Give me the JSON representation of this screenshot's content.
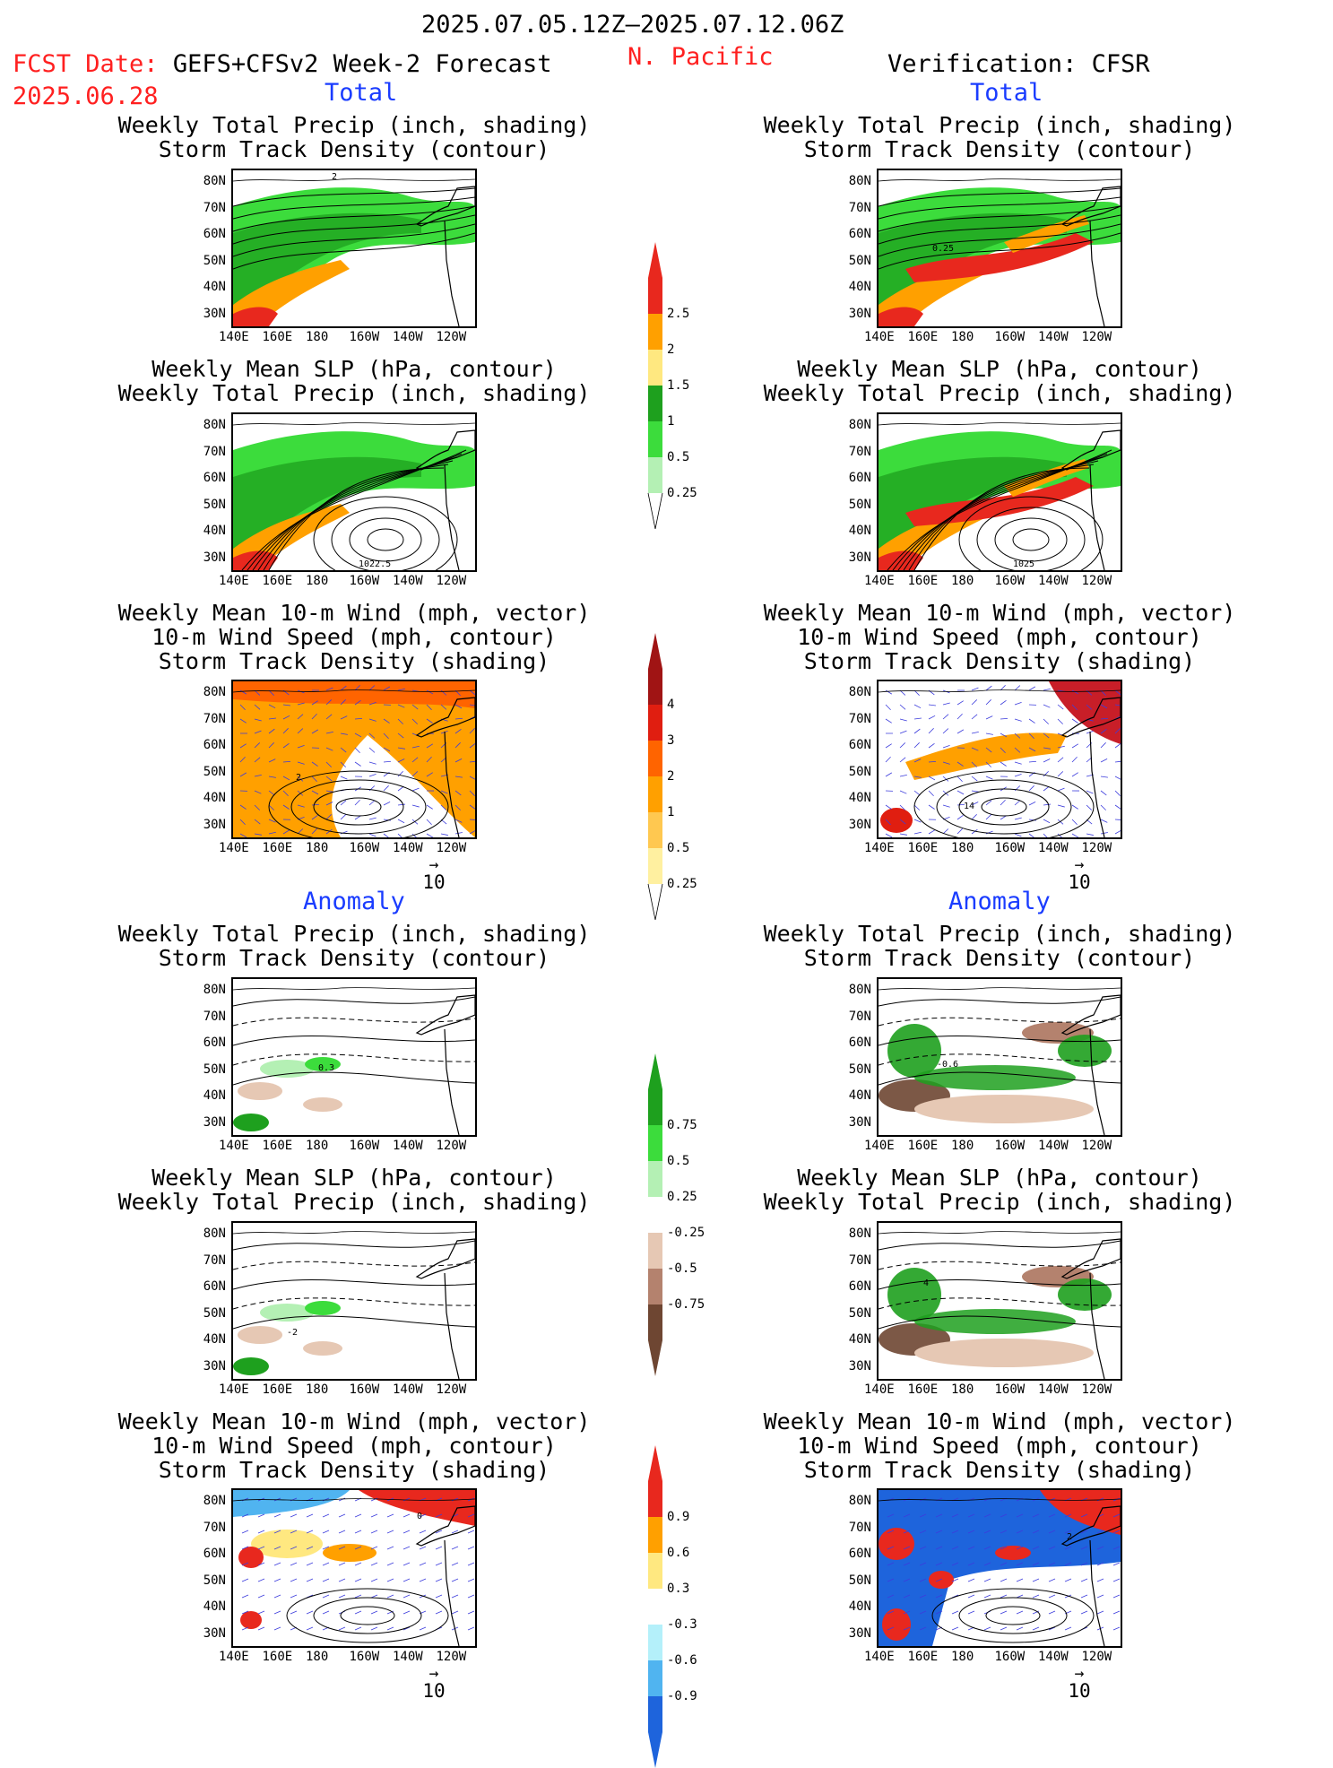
{
  "header": {
    "date_range": "2025.07.05.12Z–2025.07.12.06Z",
    "region": "N. Pacific",
    "fcst_label": "FCST Date: ",
    "fcst_model": "GEFS+CFSv2 Week-2 Forecast",
    "fcst_date": "2025.06.28",
    "verification": "Verification: CFSR"
  },
  "sections": {
    "total": "Total",
    "anomaly": "Anomaly"
  },
  "panels": [
    {
      "id": "f-tot-precip",
      "t1": "Weekly Total Precip (inch, shading)",
      "t2": "Storm Track Density (contour)",
      "t3": "",
      "label": "2"
    },
    {
      "id": "v-tot-precip",
      "t1": "Weekly Total Precip (inch, shading)",
      "t2": "Storm Track Density (contour)",
      "t3": "",
      "label": "0.25"
    },
    {
      "id": "f-tot-slp",
      "t1": "Weekly Mean SLP (hPa, contour)",
      "t2": "Weekly Total Precip (inch, shading)",
      "t3": "",
      "label": "1022.5"
    },
    {
      "id": "v-tot-slp",
      "t1": "Weekly Mean SLP (hPa, contour)",
      "t2": "Weekly Total Precip (inch, shading)",
      "t3": "",
      "label": "1025"
    },
    {
      "id": "f-tot-wind",
      "t1": "Weekly Mean 10-m Wind (mph, vector)",
      "t2": "10-m Wind Speed (mph, contour)",
      "t3": "Storm Track Density (shading)",
      "label": "2"
    },
    {
      "id": "v-tot-wind",
      "t1": "Weekly Mean 10-m Wind (mph, vector)",
      "t2": "10-m Wind Speed (mph, contour)",
      "t3": "Storm Track Density (shading)",
      "label": "14"
    },
    {
      "id": "f-anom-precip",
      "t1": "Weekly Total Precip (inch, shading)",
      "t2": "Storm Track Density (contour)",
      "t3": "",
      "label": "0.3"
    },
    {
      "id": "v-anom-precip",
      "t1": "Weekly Total Precip (inch, shading)",
      "t2": "Storm Track Density (contour)",
      "t3": "",
      "label": "-0.6"
    },
    {
      "id": "f-anom-slp",
      "t1": "Weekly Mean SLP (hPa, contour)",
      "t2": "Weekly Total Precip (inch, shading)",
      "t3": "",
      "label": "-2"
    },
    {
      "id": "v-anom-slp",
      "t1": "Weekly Mean SLP (hPa, contour)",
      "t2": "Weekly Total Precip (inch, shading)",
      "t3": "",
      "label": "4"
    },
    {
      "id": "f-anom-wind",
      "t1": "Weekly Mean 10-m Wind (mph, vector)",
      "t2": "10-m Wind Speed (mph, contour)",
      "t3": "Storm Track Density (shading)",
      "label": "0"
    },
    {
      "id": "v-anom-wind",
      "t1": "Weekly Mean 10-m Wind (mph, vector)",
      "t2": "10-m Wind Speed (mph, contour)",
      "t3": "Storm Track Density (shading)",
      "label": "2"
    }
  ],
  "axes": {
    "lat": [
      "80N",
      "70N",
      "60N",
      "50N",
      "40N",
      "30N"
    ],
    "lon": [
      "140E",
      "160E",
      "180",
      "160W",
      "140W",
      "120W"
    ]
  },
  "vector_ref": "10",
  "colorbars": {
    "precip_total": {
      "labels": [
        "2.5",
        "2",
        "1.5",
        "1",
        "0.5",
        "0.25"
      ],
      "colors": [
        "#e8281e",
        "#ffa000",
        "#ffe880",
        "#1ea01e",
        "#3cdc3c",
        "#b4f0b4"
      ]
    },
    "storm_total": {
      "labels": [
        "4",
        "3",
        "2",
        "1",
        "0.5",
        "0.25"
      ],
      "colors": [
        "#a01414",
        "#e01e10",
        "#ff6400",
        "#ffa000",
        "#ffc850",
        "#fff0a0"
      ]
    },
    "precip_anom": {
      "labels": [
        "0.75",
        "0.5",
        "0.25",
        "-0.25",
        "-0.5",
        "-0.75"
      ],
      "colors": [
        "#1ea01e",
        "#3cdc3c",
        "#b4f0b4",
        "#ffffff",
        "#e6c8b4",
        "#b4826e",
        "#6e4632"
      ]
    },
    "storm_anom": {
      "labels": [
        "0.9",
        "0.6",
        "0.3",
        "-0.3",
        "-0.6",
        "-0.9"
      ],
      "colors": [
        "#e8281e",
        "#ffa000",
        "#ffe880",
        "#ffffff",
        "#b4f0fa",
        "#50b4f0",
        "#1e64dc"
      ]
    }
  }
}
